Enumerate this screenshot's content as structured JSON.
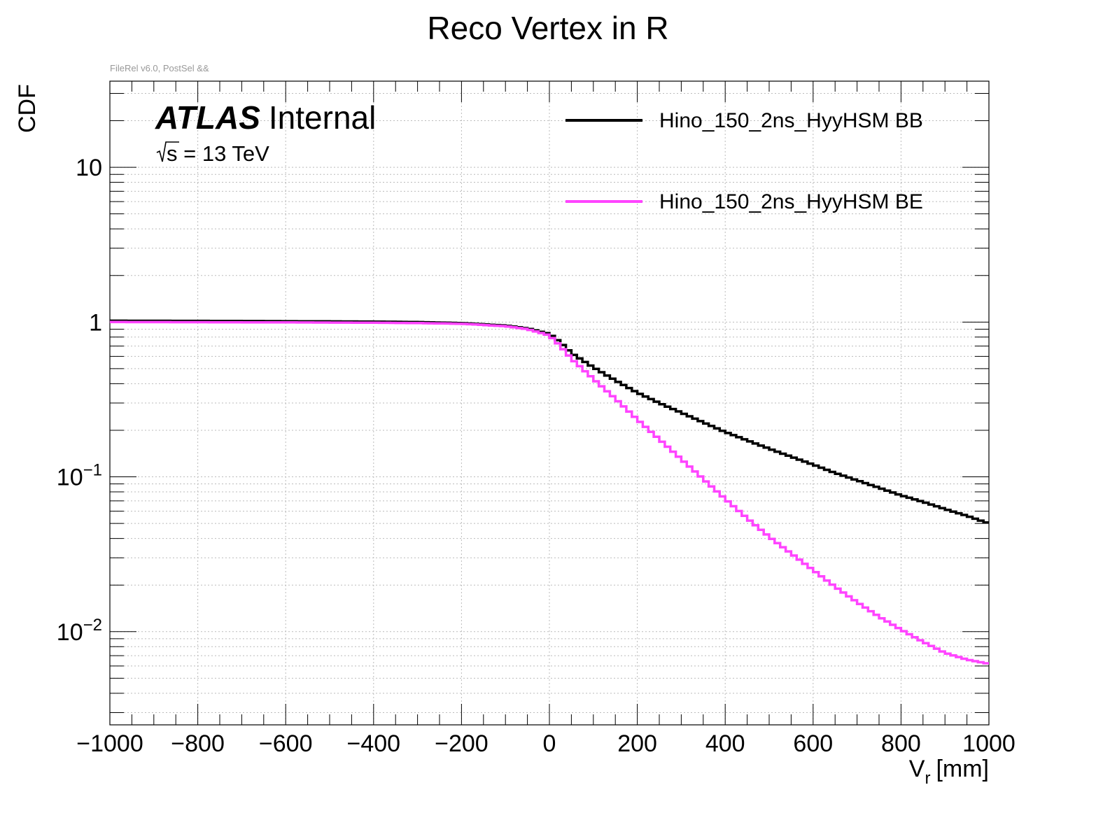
{
  "chart_data": {
    "type": "line",
    "title": "Reco Vertex in R",
    "note": "FileRel v6.0, PostSel &&",
    "ylabel": "CDF",
    "xlabel_main": "V",
    "xlabel_sub": "r",
    "xlabel_unit": "[mm]",
    "xlim": [
      -1000,
      1000
    ],
    "ylim": [
      0.0025,
      36
    ],
    "yscale": "log",
    "grid": true,
    "legend_position": "top-right",
    "atlas_label": "ATLAS",
    "atlas_status": "Internal",
    "energy_label": "s = 13 TeV",
    "x_ticks": [
      {
        "value": -1000,
        "label": "−1000"
      },
      {
        "value": -800,
        "label": "−800"
      },
      {
        "value": -600,
        "label": "−600"
      },
      {
        "value": -400,
        "label": "−400"
      },
      {
        "value": -200,
        "label": "−200"
      },
      {
        "value": 0,
        "label": "0"
      },
      {
        "value": 200,
        "label": "200"
      },
      {
        "value": 400,
        "label": "400"
      },
      {
        "value": 600,
        "label": "600"
      },
      {
        "value": 800,
        "label": "800"
      },
      {
        "value": 1000,
        "label": "1000"
      }
    ],
    "y_ticks": [
      {
        "value": 10,
        "base": "10",
        "exp": ""
      },
      {
        "value": 1,
        "base": "1",
        "exp": ""
      },
      {
        "value": 0.1,
        "base": "10",
        "exp": "−1"
      },
      {
        "value": 0.01,
        "base": "10",
        "exp": "−2"
      }
    ],
    "series": [
      {
        "name": "Hino_150_2ns_HyyHSM  BB",
        "color": "#000000",
        "x": [
          -1000,
          -800,
          -600,
          -400,
          -300,
          -200,
          -100,
          -50,
          0,
          25,
          50,
          100,
          150,
          200,
          250,
          300,
          350,
          400,
          450,
          500,
          550,
          600,
          650,
          700,
          750,
          800,
          850,
          900,
          950,
          1000
        ],
        "y": [
          1.02,
          1.018,
          1.013,
          1.007,
          1.0,
          0.985,
          0.95,
          0.91,
          0.84,
          0.74,
          0.63,
          0.51,
          0.42,
          0.35,
          0.3,
          0.26,
          0.225,
          0.195,
          0.172,
          0.152,
          0.135,
          0.12,
          0.106,
          0.095,
          0.085,
          0.076,
          0.069,
          0.062,
          0.056,
          0.05
        ]
      },
      {
        "name": "Hino_150_2ns_HyyHSM  BE",
        "color": "#ff44ff",
        "x": [
          -1000,
          -800,
          -600,
          -400,
          -300,
          -200,
          -100,
          -50,
          0,
          25,
          50,
          100,
          150,
          200,
          250,
          300,
          350,
          400,
          450,
          500,
          550,
          600,
          650,
          700,
          750,
          800,
          850,
          900,
          950,
          1000
        ],
        "y": [
          1.0,
          0.998,
          0.995,
          0.99,
          0.985,
          0.975,
          0.94,
          0.9,
          0.82,
          0.7,
          0.58,
          0.43,
          0.32,
          0.235,
          0.175,
          0.13,
          0.097,
          0.072,
          0.054,
          0.041,
          0.032,
          0.025,
          0.0195,
          0.0155,
          0.0125,
          0.0103,
          0.0086,
          0.0073,
          0.0066,
          0.0062
        ]
      }
    ]
  }
}
